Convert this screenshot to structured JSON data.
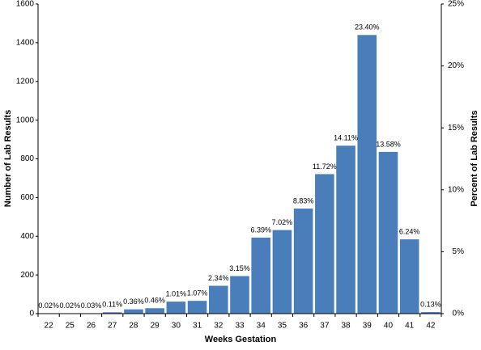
{
  "chart_data": {
    "type": "bar",
    "x_label": "Weeks Gestation",
    "y_label": "Number of Lab Results",
    "y2_label": "Percent of Lab Results",
    "categories": [
      "22",
      "25",
      "26",
      "27",
      "28",
      "29",
      "30",
      "31",
      "32",
      "33",
      "34",
      "35",
      "36",
      "37",
      "38",
      "39",
      "40",
      "41",
      "42"
    ],
    "values": [
      1,
      1,
      2,
      7,
      22,
      28,
      62,
      66,
      144,
      194,
      393,
      432,
      543,
      721,
      868,
      1440,
      836,
      384,
      8
    ],
    "bar_labels": [
      "0.02%",
      "0.02%",
      "0.03%",
      "0.11%",
      "0.36%",
      "0.46%",
      "1.01%",
      "1.07%",
      "2.34%",
      "3.15%",
      "6.39%",
      "7.02%",
      "8.83%",
      "11.72%",
      "14.11%",
      "23.40%",
      "13.58%",
      "6.24%",
      "0.13%"
    ],
    "color": "#4a7ebb",
    "ylim": [
      0,
      1600
    ],
    "yticks": [
      0,
      200,
      400,
      600,
      800,
      1000,
      1200,
      1400,
      1600
    ],
    "y2lim": [
      0,
      25
    ],
    "y2ticks": [
      {
        "value": 0,
        "label": "0%"
      },
      {
        "value": 5,
        "label": "5%"
      },
      {
        "value": 10,
        "label": "10%"
      },
      {
        "value": 15,
        "label": "15%"
      },
      {
        "value": 20,
        "label": "20%"
      },
      {
        "value": 25,
        "label": "25%"
      }
    ]
  }
}
